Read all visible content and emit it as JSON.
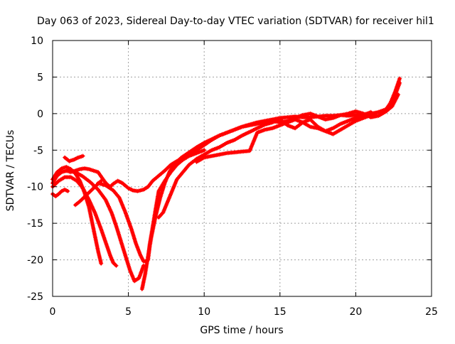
{
  "chart_data": {
    "type": "scatter",
    "title": "Day 063 of 2023, Sidereal Day-to-day VTEC variation (SDTVAR) for receiver hil1",
    "xlabel": "GPS time / hours",
    "ylabel": "SDTVAR / TECUs",
    "xlim": [
      0,
      25
    ],
    "ylim": [
      -25,
      10
    ],
    "x_ticks": [
      0,
      5,
      10,
      15,
      20,
      25
    ],
    "y_ticks": [
      -25,
      -20,
      -15,
      -10,
      -5,
      0,
      5,
      10
    ],
    "x_tick_labels": [
      "0",
      "5",
      "10",
      "15",
      "20",
      "25"
    ],
    "y_tick_labels": [
      "-25",
      "-20",
      "-15",
      "-10",
      "-5",
      "0",
      "5",
      "10"
    ],
    "grid": true,
    "marker": "+",
    "series_color": "#ff0000",
    "series": [
      {
        "x": [
          0.0,
          0.3,
          0.6,
          0.9,
          1.2,
          1.5,
          1.8,
          2.1,
          2.4,
          2.7,
          3.0,
          3.2,
          3.4,
          3.6,
          3.8,
          4.0,
          4.3,
          4.6,
          5.0,
          5.3,
          5.6,
          6.0,
          6.3,
          6.6,
          7.0,
          7.4,
          7.8,
          8.2,
          8.6,
          9.0,
          9.5,
          10.0,
          10.5,
          11.0,
          11.5,
          12.0,
          12.5,
          13.0,
          13.5,
          14.0,
          14.5,
          15.0,
          15.5,
          16.0,
          16.5,
          17.0,
          17.5,
          18.0,
          18.5,
          19.0,
          19.5,
          20.0,
          20.5,
          21.0,
          21.5,
          22.0,
          22.3,
          22.6,
          22.9
        ],
        "y": [
          -9.5,
          -8.5,
          -8.0,
          -7.8,
          -8.0,
          -7.8,
          -7.6,
          -7.5,
          -7.6,
          -7.8,
          -8.0,
          -8.6,
          -9.2,
          -9.7,
          -10.0,
          -9.6,
          -9.2,
          -9.5,
          -10.2,
          -10.5,
          -10.6,
          -10.4,
          -10.0,
          -9.2,
          -8.5,
          -7.8,
          -7.0,
          -6.5,
          -6.0,
          -5.5,
          -5.0,
          -4.3,
          -3.6,
          -3.0,
          -2.6,
          -2.2,
          -1.8,
          -1.5,
          -1.2,
          -1.0,
          -0.8,
          -0.6,
          -0.5,
          -0.4,
          -0.5,
          -0.5,
          -0.4,
          -0.3,
          -0.3,
          -0.2,
          -0.3,
          -0.2,
          -0.1,
          0.0,
          0.2,
          0.5,
          1.5,
          3.0,
          4.8
        ]
      },
      {
        "x": [
          0.0,
          0.3,
          0.6,
          0.9,
          1.2,
          1.5,
          1.8,
          2.1,
          2.4,
          2.6,
          2.8,
          3.0,
          3.2
        ],
        "y": [
          -9.0,
          -8.0,
          -7.5,
          -7.3,
          -7.6,
          -8.2,
          -9.2,
          -10.8,
          -12.8,
          -14.8,
          -16.8,
          -18.8,
          -20.5
        ]
      },
      {
        "x": [
          0.0,
          0.4,
          0.8,
          1.2,
          1.6,
          2.0,
          2.4,
          2.8,
          3.2,
          3.5,
          3.8,
          4.0,
          4.2
        ],
        "y": [
          -10.0,
          -9.2,
          -8.7,
          -8.7,
          -9.2,
          -10.2,
          -11.8,
          -13.6,
          -15.8,
          -17.6,
          -19.4,
          -20.4,
          -20.8
        ]
      },
      {
        "x": [
          0.0,
          0.5,
          1.0,
          1.5,
          2.0,
          2.5,
          3.0,
          3.5,
          3.9,
          4.2,
          4.5,
          4.8,
          5.1,
          5.4,
          5.7,
          6.0
        ],
        "y": [
          -9.0,
          -8.0,
          -7.8,
          -8.0,
          -8.6,
          -9.4,
          -10.4,
          -11.8,
          -13.6,
          -15.4,
          -17.4,
          -19.4,
          -21.4,
          -22.9,
          -22.5,
          -20.8
        ]
      },
      {
        "x": [
          3.0,
          3.5,
          4.0,
          4.4,
          4.8,
          5.2,
          5.5,
          5.8,
          6.0,
          6.2,
          6.3,
          6.4,
          6.6,
          6.8,
          7.0,
          7.4,
          7.8,
          8.2,
          8.6,
          9.0,
          9.5,
          10.0
        ],
        "y": [
          -9.5,
          -9.8,
          -10.5,
          -11.5,
          -13.5,
          -15.8,
          -17.8,
          -19.4,
          -20.2,
          -20.2,
          -20.0,
          -18.0,
          -15.5,
          -13.0,
          -10.6,
          -9.2,
          -8.0,
          -7.0,
          -6.3,
          -5.8,
          -5.4,
          -5.0
        ]
      },
      {
        "x": [
          5.9,
          6.1,
          6.3,
          6.5,
          6.8,
          7.1,
          7.4,
          7.7,
          8.0,
          8.5,
          9.0,
          9.5,
          10.0,
          10.5,
          11.0,
          11.5,
          12.0,
          12.5,
          13.0,
          13.5,
          14.0,
          14.5,
          15.0,
          15.5,
          16.0,
          16.5,
          17.0,
          17.5,
          18.0,
          18.5,
          19.0,
          19.5,
          20.0,
          20.5,
          21.0,
          21.5,
          22.0,
          22.4,
          22.8
        ],
        "y": [
          -24.0,
          -22.0,
          -19.5,
          -17.0,
          -14.0,
          -11.5,
          -9.5,
          -8.0,
          -7.0,
          -6.0,
          -5.3,
          -4.6,
          -4.0,
          -3.5,
          -3.0,
          -2.6,
          -2.2,
          -1.8,
          -1.6,
          -1.4,
          -1.2,
          -1.0,
          -1.2,
          -1.0,
          -0.6,
          -0.2,
          0.0,
          -0.4,
          -0.8,
          -0.6,
          -0.2,
          0.0,
          0.3,
          0.0,
          -0.5,
          -0.3,
          0.3,
          1.0,
          2.6
        ]
      },
      {
        "x": [
          7.0,
          7.3,
          7.6,
          7.9,
          8.2,
          8.6,
          9.0,
          9.5,
          10.0,
          10.5,
          11.0,
          11.5,
          12.0,
          12.5,
          13.0,
          13.5,
          14.0,
          14.5,
          15.0,
          15.5,
          16.0,
          16.5,
          17.0,
          17.5,
          18.0,
          18.5,
          19.0,
          19.5,
          20.0,
          20.5,
          21.0
        ],
        "y": [
          -14.2,
          -13.5,
          -12.0,
          -10.5,
          -9.0,
          -8.0,
          -7.0,
          -6.2,
          -5.6,
          -5.0,
          -4.6,
          -4.0,
          -3.6,
          -3.0,
          -2.5,
          -2.0,
          -1.5,
          -1.2,
          -0.8,
          -1.6,
          -2.0,
          -1.2,
          -0.8,
          -1.8,
          -2.4,
          -2.0,
          -1.4,
          -1.0,
          -0.6,
          -0.2,
          0.2
        ]
      },
      {
        "x": [
          9.5,
          10.0,
          10.5,
          11.0,
          11.5,
          12.0,
          12.5,
          13.0,
          13.5,
          14.0,
          14.5,
          15.0,
          15.5,
          16.0,
          16.5,
          17.0,
          17.5,
          18.0,
          18.5,
          19.0,
          19.5,
          20.0,
          20.5,
          21.0,
          21.5,
          22.0,
          22.5,
          22.9
        ],
        "y": [
          -6.6,
          -6.0,
          -5.8,
          -5.6,
          -5.4,
          -5.3,
          -5.2,
          -5.1,
          -2.6,
          -2.2,
          -2.0,
          -1.6,
          -1.2,
          -0.8,
          -1.2,
          -1.8,
          -2.0,
          -2.4,
          -2.8,
          -2.2,
          -1.6,
          -1.0,
          -0.6,
          -0.2,
          0.2,
          0.6,
          2.0,
          4.2
        ]
      },
      {
        "x": [
          0.0,
          0.2,
          0.4,
          0.6,
          0.8,
          1.0
        ],
        "y": [
          -11.0,
          -11.3,
          -11.0,
          -10.6,
          -10.4,
          -10.6
        ]
      },
      {
        "x": [
          1.5,
          1.8,
          2.1,
          2.4,
          2.7,
          3.0,
          3.2
        ],
        "y": [
          -12.5,
          -12.0,
          -11.4,
          -10.8,
          -10.2,
          -9.6,
          -9.2
        ]
      },
      {
        "x": [
          0.8,
          1.1,
          1.4,
          1.7,
          2.0
        ],
        "y": [
          -6.0,
          -6.5,
          -6.3,
          -6.0,
          -5.8
        ]
      }
    ]
  }
}
